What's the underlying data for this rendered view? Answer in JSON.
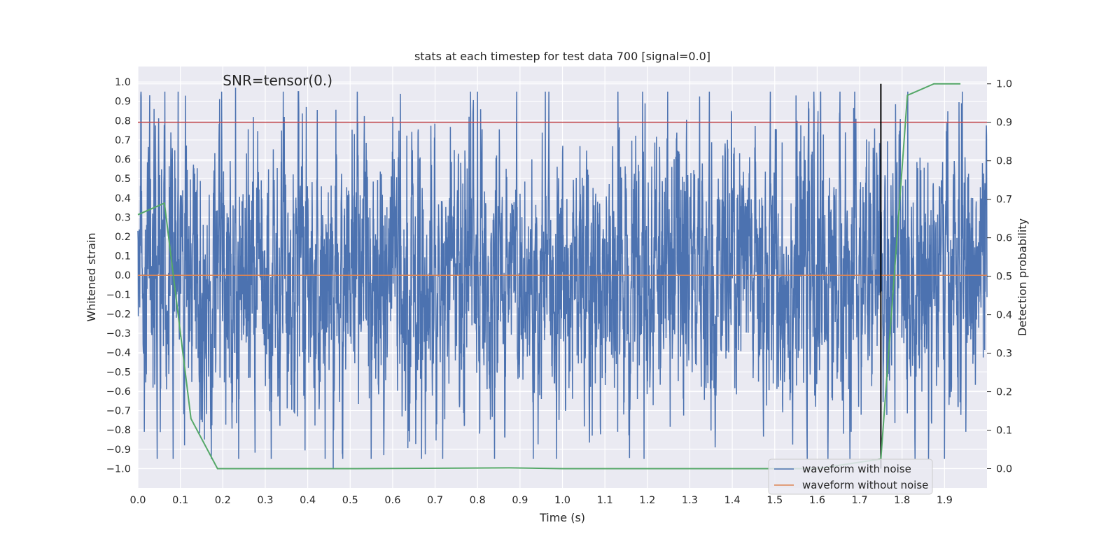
{
  "chart_data": {
    "type": "line",
    "title": "stats at each timestep for test data 700 [signal=0.0]",
    "annotation": "SNR=tensor(0.)",
    "xlabel": "Time (s)",
    "ylabel_left": "Whitened strain",
    "ylabel_right": "Detection probability",
    "xlim": [
      0.0,
      2.0
    ],
    "ylim_left": [
      -1.1,
      1.08
    ],
    "ylim_right": [
      -0.05,
      1.045
    ],
    "x_ticks": [
      "0.0",
      "0.1",
      "0.2",
      "0.3",
      "0.4",
      "0.5",
      "0.6",
      "0.7",
      "0.8",
      "0.9",
      "1.0",
      "1.1",
      "1.2",
      "1.3",
      "1.4",
      "1.5",
      "1.6",
      "1.7",
      "1.8",
      "1.9"
    ],
    "y_ticks_left": [
      "1.0",
      "0.9",
      "0.8",
      "0.7",
      "0.6",
      "0.5",
      "0.4",
      "0.3",
      "0.2",
      "0.1",
      "0.0",
      "-0.1",
      "-0.2",
      "-0.3",
      "-0.4",
      "-0.5",
      "-0.6",
      "-0.7",
      "-0.8",
      "-0.9",
      "-1.0"
    ],
    "y_ticks_right": [
      "1.0",
      "0.9",
      "0.8",
      "0.7",
      "0.6",
      "0.5",
      "0.4",
      "0.3",
      "0.2",
      "0.1",
      "0.0"
    ],
    "series": [
      {
        "name": "waveform with noise",
        "axis": "left",
        "color": "#4c72b0",
        "description": "dense noisy whitened strain signal, 4096 samples, amplitude mostly within ±0.5 with spikes near ±1.0",
        "n_samples": 4096,
        "peaks": [
          [
            0.038,
            0.86
          ],
          [
            0.23,
            0.97
          ],
          [
            0.6,
            0.82
          ],
          [
            0.78,
            0.82
          ],
          [
            1.13,
            0.83
          ],
          [
            1.55,
            0.93
          ],
          [
            1.94,
            0.89
          ]
        ],
        "troughs": [
          [
            0.015,
            -0.81
          ],
          [
            0.11,
            -0.88
          ],
          [
            0.46,
            -1.0
          ],
          [
            0.64,
            -0.86
          ],
          [
            1.13,
            -0.81
          ],
          [
            1.68,
            -0.81
          ],
          [
            1.95,
            -0.81
          ]
        ]
      },
      {
        "name": "waveform without noise",
        "axis": "left",
        "color": "#dd8452",
        "x": [
          0.0,
          2.0
        ],
        "y": [
          0.0,
          0.0
        ]
      },
      {
        "name": "detection probability",
        "axis": "right",
        "color": "#55a868",
        "x": [
          0.0,
          0.0625,
          0.125,
          0.1875,
          0.25,
          0.5,
          0.875,
          1.0,
          1.5,
          1.6,
          1.75,
          1.8125,
          1.875,
          1.9375
        ],
        "y": [
          0.66,
          0.69,
          0.13,
          0.0,
          0.0,
          0.0,
          0.002,
          0.0,
          0.0,
          0.0,
          0.025,
          0.97,
          1.0,
          1.0
        ]
      },
      {
        "name": "threshold",
        "axis": "right",
        "color": "#c44e52",
        "x": [
          0.0,
          2.0
        ],
        "y": [
          0.9,
          0.9
        ]
      },
      {
        "name": "detection marker",
        "axis": "right",
        "color": "#000000",
        "x": [
          1.75,
          1.75
        ],
        "y": [
          0.0,
          1.0
        ]
      }
    ],
    "legend": {
      "location": "lower-right",
      "entries": [
        {
          "label": "waveform with noise",
          "color": "#4c72b0"
        },
        {
          "label": "waveform without noise",
          "color": "#dd8452"
        }
      ]
    },
    "grid": true,
    "background_color": "#eaeaf2"
  }
}
